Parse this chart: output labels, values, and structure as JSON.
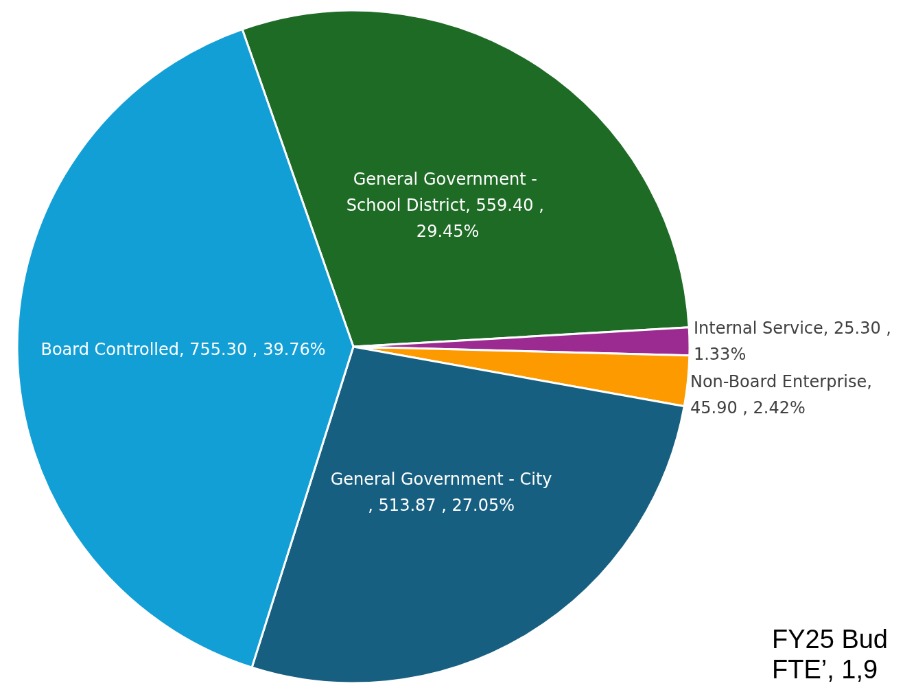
{
  "chart_data": {
    "type": "pie",
    "categories": [
      "General Government - School District",
      "Internal Service",
      "Non-Board Enterprise",
      "General Government - City",
      "Board Controlled"
    ],
    "values": [
      559.4,
      25.3,
      45.9,
      513.87,
      755.3
    ],
    "value_labels": [
      ", 559.40 , 29.45%",
      ", 25.30 , 1.33%",
      ", 45.90 , 2.42%",
      ", 513.87 , 27.05%",
      ", 755.30 , 39.76%"
    ],
    "colors": [
      "#1e6b25",
      "#9c2b91",
      "#fd9a00",
      "#175f80",
      "#119fd6"
    ],
    "annotations": [
      "FY25 Bud",
      "FTE’, 1,9"
    ],
    "legend": false
  }
}
